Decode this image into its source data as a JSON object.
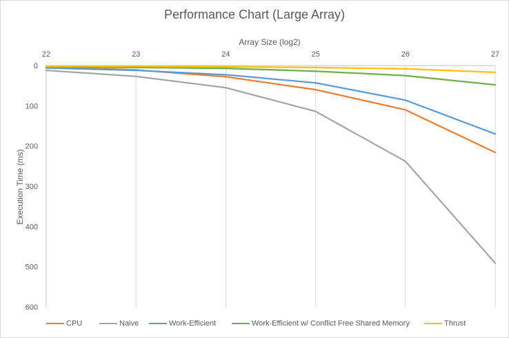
{
  "chart_data": {
    "type": "line",
    "title": "Performance Chart (Large Array)",
    "xlabel": "Array Size (log2)",
    "ylabel": "Execution Time (ms)",
    "x": [
      22,
      23,
      24,
      25,
      26,
      27
    ],
    "x_tick_labels": [
      "22",
      "23",
      "24",
      "25",
      "26",
      "27"
    ],
    "y_tick_labels": [
      "0",
      "100",
      "200",
      "300",
      "400",
      "500",
      "600"
    ],
    "y_ticks": [
      0,
      100,
      200,
      300,
      400,
      500,
      600
    ],
    "ylim": [
      0,
      600
    ],
    "y_axis_reversed": true,
    "x_axis_position": "top",
    "grid": "vertical",
    "legend_position": "bottom",
    "series": [
      {
        "name": "CPU",
        "color": "#ED7D31",
        "values": [
          4,
          11,
          28,
          60,
          110,
          216
        ]
      },
      {
        "name": "Naive",
        "color": "#A5A5A5",
        "values": [
          12,
          27,
          55,
          114,
          238,
          491
        ]
      },
      {
        "name": "Work-Efficient",
        "color": "#5B9BD5",
        "values": [
          6,
          12,
          23,
          43,
          86,
          170
        ]
      },
      {
        "name": "Work-Efficient w/ Conflict Free Shared Memory",
        "color": "#70AD47",
        "values": [
          4,
          5,
          7,
          14,
          25,
          48
        ]
      },
      {
        "name": "Thrust",
        "color": "#FFC000",
        "values": [
          2,
          2,
          3,
          5,
          8,
          17
        ]
      }
    ]
  }
}
